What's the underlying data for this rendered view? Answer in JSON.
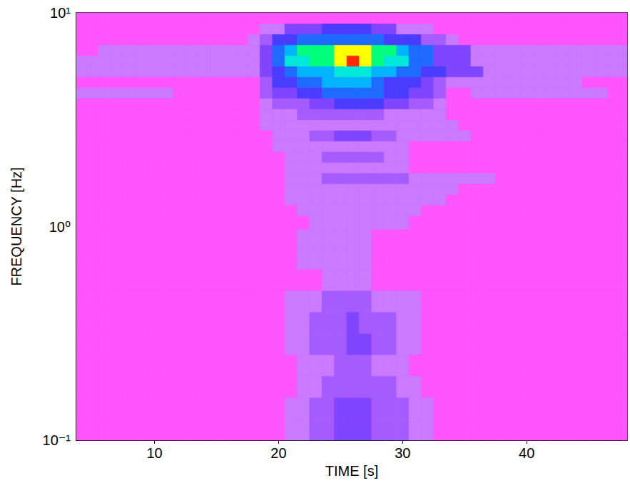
{
  "chart_data": {
    "type": "heatmap",
    "x_label": "TIME [s]",
    "y_label": "FREQUENCY [Hz]",
    "log": "y",
    "grid": false,
    "xlim": [
      3.7,
      48.1
    ],
    "ylim": [
      0.1,
      10
    ],
    "xticks": [
      10,
      20,
      30,
      40
    ],
    "yticks": [
      {
        "value": 0.1,
        "label": "10⁻¹"
      },
      {
        "value": 1,
        "label": "10⁰"
      },
      {
        "value": 10,
        "label": "10¹"
      }
    ],
    "zlim": [
      0,
      10
    ],
    "x": [
      4,
      5,
      6,
      7,
      8,
      9,
      10,
      11,
      12,
      13,
      14,
      15,
      16,
      17,
      18,
      19,
      20,
      21,
      22,
      23,
      24,
      25,
      26,
      27,
      28,
      29,
      30,
      31,
      32,
      33,
      34,
      35,
      36,
      37,
      38,
      39,
      40,
      41,
      42,
      43,
      44,
      45,
      46,
      47,
      48
    ],
    "y": [
      0.112,
      0.141,
      0.178,
      0.224,
      0.282,
      0.355,
      0.447,
      0.562,
      0.708,
      0.891,
      1.059,
      1.189,
      1.334,
      1.496,
      1.679,
      1.884,
      2.113,
      2.371,
      2.661,
      2.985,
      3.35,
      3.758,
      4.217,
      4.732,
      5.309,
      5.957,
      6.683,
      7.499,
      8.414,
      9.441
    ],
    "values": [
      [
        0,
        0,
        0,
        0,
        0,
        0,
        0,
        0,
        0,
        0,
        0,
        0,
        0,
        0,
        0,
        0,
        0,
        1,
        1,
        2,
        2,
        3,
        3,
        3,
        2,
        2,
        2,
        1,
        1,
        0,
        0,
        0,
        0,
        0,
        0,
        0,
        0,
        0,
        0,
        0,
        0,
        0,
        0,
        0,
        0
      ],
      [
        0,
        0,
        0,
        0,
        0,
        0,
        0,
        0,
        0,
        0,
        0,
        0,
        0,
        0,
        0,
        0,
        0,
        1,
        1,
        2,
        2,
        3,
        3,
        3,
        2,
        2,
        2,
        1,
        1,
        0,
        0,
        0,
        0,
        0,
        0,
        0,
        0,
        0,
        0,
        0,
        0,
        0,
        0,
        0,
        0
      ],
      [
        0,
        0,
        0,
        0,
        0,
        0,
        0,
        0,
        0,
        0,
        0,
        0,
        0,
        0,
        0,
        0,
        0,
        0,
        1,
        1,
        2,
        2,
        2,
        2,
        2,
        2,
        1,
        1,
        0,
        0,
        0,
        0,
        0,
        0,
        0,
        0,
        0,
        0,
        0,
        0,
        0,
        0,
        0,
        0,
        0
      ],
      [
        0,
        0,
        0,
        0,
        0,
        0,
        0,
        0,
        0,
        0,
        0,
        0,
        0,
        0,
        0,
        0,
        0,
        0,
        1,
        1,
        1,
        2,
        2,
        2,
        1,
        1,
        1,
        0,
        0,
        0,
        0,
        0,
        0,
        0,
        0,
        0,
        0,
        0,
        0,
        0,
        0,
        0,
        0,
        0,
        0
      ],
      [
        0,
        0,
        0,
        0,
        0,
        0,
        0,
        0,
        0,
        0,
        0,
        0,
        0,
        0,
        0,
        0,
        0,
        1,
        1,
        2,
        2,
        2,
        3,
        3,
        2,
        2,
        1,
        1,
        0,
        0,
        0,
        0,
        0,
        0,
        0,
        0,
        0,
        0,
        0,
        0,
        0,
        0,
        0,
        0,
        0
      ],
      [
        0,
        0,
        0,
        0,
        0,
        0,
        0,
        0,
        0,
        0,
        0,
        0,
        0,
        0,
        0,
        0,
        0,
        1,
        1,
        2,
        2,
        2,
        3,
        2,
        2,
        2,
        1,
        1,
        0,
        0,
        0,
        0,
        0,
        0,
        0,
        0,
        0,
        0,
        0,
        0,
        0,
        0,
        0,
        0,
        0
      ],
      [
        0,
        0,
        0,
        0,
        0,
        0,
        0,
        0,
        0,
        0,
        0,
        0,
        0,
        0,
        0,
        0,
        0,
        1,
        1,
        1,
        2,
        2,
        2,
        2,
        1,
        1,
        1,
        1,
        0,
        0,
        0,
        0,
        0,
        0,
        0,
        0,
        0,
        0,
        0,
        0,
        0,
        0,
        0,
        0,
        0
      ],
      [
        0,
        0,
        0,
        0,
        0,
        0,
        0,
        0,
        0,
        0,
        0,
        0,
        0,
        0,
        0,
        0,
        0,
        0,
        0,
        0,
        1,
        1,
        1,
        1,
        0,
        0,
        0,
        0,
        0,
        0,
        0,
        0,
        0,
        0,
        0,
        0,
        0,
        0,
        0,
        0,
        0,
        0,
        0,
        0,
        0
      ],
      [
        0,
        0,
        0,
        0,
        0,
        0,
        0,
        0,
        0,
        0,
        0,
        0,
        0,
        0,
        0,
        0,
        0,
        0,
        1,
        1,
        1,
        1,
        1,
        1,
        0,
        0,
        0,
        0,
        0,
        0,
        0,
        0,
        0,
        0,
        0,
        0,
        0,
        0,
        0,
        0,
        0,
        0,
        0,
        0,
        0
      ],
      [
        0,
        0,
        0,
        0,
        0,
        0,
        0,
        0,
        0,
        0,
        0,
        0,
        0,
        0,
        0,
        0,
        0,
        0,
        1,
        1,
        1,
        1,
        1,
        1,
        0,
        0,
        0,
        0,
        0,
        0,
        0,
        0,
        0,
        0,
        0,
        0,
        0,
        0,
        0,
        0,
        0,
        0,
        0,
        0,
        0
      ],
      [
        0,
        0,
        0,
        0,
        0,
        0,
        0,
        0,
        0,
        0,
        0,
        0,
        0,
        0,
        0,
        0,
        0,
        0,
        0,
        1,
        1,
        1,
        1,
        1,
        1,
        1,
        1,
        0,
        0,
        0,
        0,
        0,
        0,
        0,
        0,
        0,
        0,
        0,
        0,
        0,
        0,
        0,
        0,
        0,
        0
      ],
      [
        0,
        0,
        0,
        0,
        0,
        0,
        0,
        0,
        0,
        0,
        0,
        0,
        0,
        0,
        0,
        0,
        0,
        0,
        1,
        1,
        1,
        1,
        1,
        1,
        1,
        1,
        1,
        1,
        0,
        0,
        0,
        0,
        0,
        0,
        0,
        0,
        0,
        0,
        0,
        0,
        0,
        0,
        0,
        0,
        0
      ],
      [
        0,
        0,
        0,
        0,
        0,
        0,
        0,
        0,
        0,
        0,
        0,
        0,
        0,
        0,
        0,
        0,
        0,
        1,
        1,
        1,
        1,
        1,
        1,
        1,
        1,
        1,
        1,
        1,
        1,
        1,
        0,
        0,
        0,
        0,
        0,
        0,
        0,
        0,
        0,
        0,
        0,
        0,
        0,
        0,
        0
      ],
      [
        0,
        0,
        0,
        0,
        0,
        0,
        0,
        0,
        0,
        0,
        0,
        0,
        0,
        0,
        0,
        0,
        0,
        1,
        1,
        1,
        1,
        1,
        1,
        1,
        1,
        1,
        1,
        1,
        1,
        1,
        1,
        0,
        0,
        0,
        0,
        0,
        0,
        0,
        0,
        0,
        0,
        0,
        0,
        0,
        0
      ],
      [
        0,
        0,
        0,
        0,
        0,
        0,
        0,
        0,
        0,
        0,
        0,
        0,
        0,
        0,
        0,
        0,
        0,
        1,
        1,
        1,
        2,
        2,
        2,
        2,
        2,
        2,
        2,
        1,
        1,
        1,
        1,
        1,
        1,
        1,
        0,
        0,
        0,
        0,
        0,
        0,
        0,
        0,
        0,
        0,
        0
      ],
      [
        0,
        0,
        0,
        0,
        0,
        0,
        0,
        0,
        0,
        0,
        0,
        0,
        0,
        0,
        0,
        0,
        0,
        1,
        1,
        1,
        1,
        1,
        1,
        1,
        1,
        1,
        1,
        0,
        0,
        0,
        0,
        0,
        0,
        0,
        0,
        0,
        0,
        0,
        0,
        0,
        0,
        0,
        0,
        0,
        0
      ],
      [
        0,
        0,
        0,
        0,
        0,
        0,
        0,
        0,
        0,
        0,
        0,
        0,
        0,
        0,
        0,
        0,
        0,
        1,
        1,
        1,
        2,
        2,
        2,
        2,
        2,
        1,
        1,
        0,
        0,
        0,
        0,
        0,
        0,
        0,
        0,
        0,
        0,
        0,
        0,
        0,
        0,
        0,
        0,
        0,
        0
      ],
      [
        0,
        0,
        0,
        0,
        0,
        0,
        0,
        0,
        0,
        0,
        0,
        0,
        0,
        0,
        0,
        0,
        1,
        1,
        1,
        1,
        1,
        1,
        1,
        1,
        1,
        1,
        1,
        0,
        0,
        0,
        0,
        0,
        0,
        0,
        0,
        0,
        0,
        0,
        0,
        0,
        0,
        0,
        0,
        0,
        0
      ],
      [
        0,
        0,
        0,
        0,
        0,
        0,
        0,
        0,
        0,
        0,
        0,
        0,
        0,
        0,
        0,
        0,
        1,
        1,
        1,
        2,
        2,
        3,
        3,
        3,
        2,
        2,
        1,
        1,
        1,
        1,
        1,
        1,
        0,
        0,
        0,
        0,
        0,
        0,
        0,
        0,
        0,
        0,
        0,
        0,
        0
      ],
      [
        0,
        0,
        0,
        0,
        0,
        0,
        0,
        0,
        0,
        0,
        0,
        0,
        0,
        0,
        0,
        1,
        1,
        1,
        1,
        1,
        1,
        1,
        1,
        1,
        1,
        1,
        1,
        1,
        1,
        1,
        1,
        0,
        0,
        0,
        0,
        0,
        0,
        0,
        0,
        0,
        0,
        0,
        0,
        0,
        0
      ],
      [
        0,
        0,
        0,
        0,
        0,
        0,
        0,
        0,
        0,
        0,
        0,
        0,
        0,
        0,
        0,
        1,
        1,
        1,
        2,
        2,
        2,
        2,
        2,
        2,
        2,
        1,
        1,
        1,
        1,
        1,
        0,
        0,
        0,
        0,
        0,
        0,
        0,
        0,
        0,
        0,
        0,
        0,
        0,
        0,
        0
      ],
      [
        0,
        0,
        0,
        0,
        0,
        0,
        0,
        0,
        0,
        0,
        0,
        0,
        0,
        0,
        0,
        1,
        2,
        2,
        2,
        3,
        3,
        4,
        4,
        4,
        4,
        3,
        3,
        2,
        2,
        1,
        0,
        0,
        0,
        0,
        0,
        0,
        0,
        0,
        0,
        0,
        0,
        0,
        0,
        0,
        0
      ],
      [
        1,
        1,
        1,
        1,
        1,
        1,
        1,
        1,
        0,
        0,
        0,
        0,
        0,
        0,
        0,
        2,
        3,
        3,
        4,
        4,
        5,
        5,
        5,
        5,
        5,
        4,
        4,
        3,
        3,
        2,
        0,
        0,
        1,
        1,
        1,
        1,
        1,
        1,
        1,
        1,
        1,
        1,
        1,
        0,
        0
      ],
      [
        0,
        0,
        0,
        0,
        0,
        0,
        0,
        0,
        0,
        0,
        0,
        0,
        0,
        0,
        0,
        2,
        4,
        4,
        5,
        5,
        6,
        6,
        6,
        6,
        5,
        4,
        4,
        4,
        3,
        2,
        1,
        1,
        1,
        1,
        1,
        1,
        1,
        1,
        1,
        1,
        1,
        0,
        0,
        0,
        0
      ],
      [
        1,
        1,
        1,
        1,
        1,
        1,
        1,
        1,
        1,
        1,
        1,
        1,
        1,
        1,
        1,
        3,
        4,
        5,
        6,
        6,
        6,
        7,
        7,
        7,
        6,
        6,
        5,
        5,
        4,
        4,
        3,
        3,
        3,
        1,
        1,
        1,
        1,
        1,
        1,
        1,
        1,
        1,
        1,
        1,
        1
      ],
      [
        1,
        1,
        1,
        1,
        1,
        1,
        1,
        1,
        1,
        1,
        1,
        1,
        1,
        1,
        1,
        3,
        5,
        7,
        7,
        8,
        8,
        9,
        10,
        9,
        8,
        7,
        7,
        5,
        5,
        3,
        3,
        3,
        1,
        1,
        1,
        1,
        1,
        1,
        1,
        1,
        1,
        1,
        1,
        1,
        1
      ],
      [
        0,
        0,
        1,
        1,
        1,
        1,
        1,
        1,
        1,
        1,
        1,
        1,
        1,
        1,
        1,
        3,
        5,
        6,
        8,
        8,
        8,
        9,
        9,
        9,
        8,
        8,
        6,
        5,
        5,
        3,
        3,
        3,
        1,
        1,
        1,
        1,
        1,
        1,
        1,
        1,
        1,
        1,
        1,
        1,
        1
      ],
      [
        0,
        0,
        0,
        0,
        0,
        0,
        0,
        0,
        0,
        0,
        0,
        0,
        0,
        0,
        1,
        2,
        4,
        4,
        5,
        5,
        5,
        5,
        5,
        5,
        5,
        4,
        4,
        4,
        2,
        2,
        1,
        0,
        0,
        0,
        0,
        0,
        0,
        0,
        0,
        0,
        0,
        0,
        0,
        0,
        0
      ],
      [
        0,
        0,
        0,
        0,
        0,
        0,
        0,
        0,
        0,
        0,
        0,
        0,
        0,
        0,
        0,
        1,
        1,
        3,
        3,
        3,
        4,
        4,
        4,
        4,
        3,
        3,
        1,
        1,
        1,
        0,
        0,
        0,
        0,
        0,
        0,
        0,
        0,
        0,
        0,
        0,
        0,
        0,
        0,
        0,
        0
      ],
      [
        0,
        0,
        0,
        0,
        0,
        0,
        0,
        0,
        0,
        0,
        0,
        0,
        0,
        0,
        0,
        0,
        0,
        0,
        0,
        0,
        0,
        0,
        0,
        0,
        0,
        0,
        0,
        0,
        0,
        0,
        0,
        0,
        0,
        0,
        0,
        0,
        0,
        0,
        0,
        0,
        0,
        0,
        0,
        0,
        0
      ]
    ]
  }
}
